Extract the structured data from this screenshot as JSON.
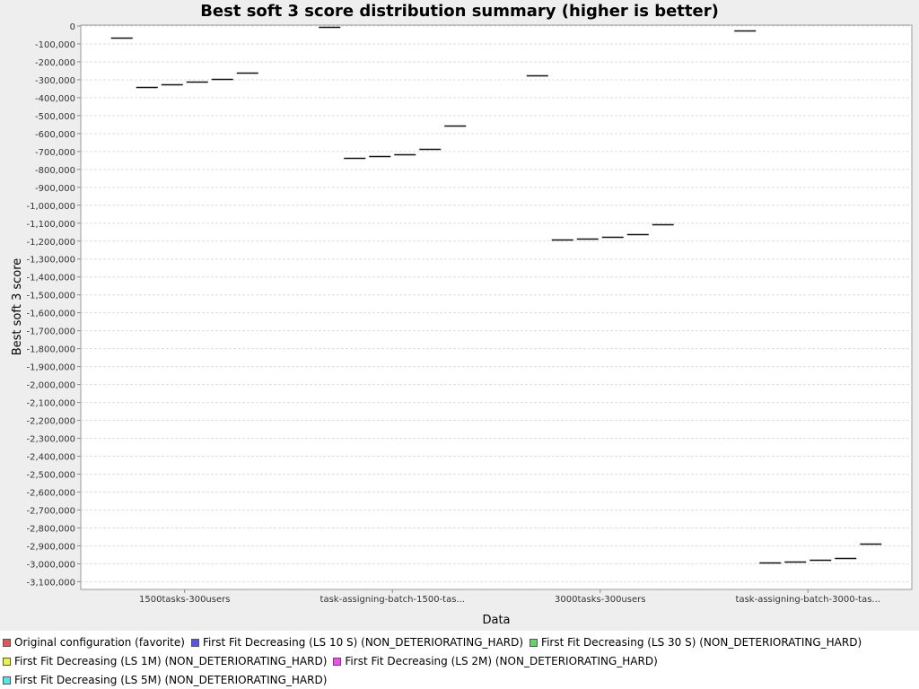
{
  "chart_data": {
    "type": "boxplot",
    "title": "Best soft 3 score distribution summary (higher is better)",
    "xlabel": "Data",
    "ylabel": "Best soft 3 score",
    "ylim": [
      -3150000,
      0
    ],
    "yticks": [
      {
        "v": 0,
        "label": "0"
      },
      {
        "v": -100000,
        "label": "-100,000"
      },
      {
        "v": -200000,
        "label": "-200,000"
      },
      {
        "v": -300000,
        "label": "-300,000"
      },
      {
        "v": -400000,
        "label": "-400,000"
      },
      {
        "v": -500000,
        "label": "-500,000"
      },
      {
        "v": -600000,
        "label": "-600,000"
      },
      {
        "v": -700000,
        "label": "-700,000"
      },
      {
        "v": -800000,
        "label": "-800,000"
      },
      {
        "v": -900000,
        "label": "-900,000"
      },
      {
        "v": -1000000,
        "label": "-1,000,000"
      },
      {
        "v": -1100000,
        "label": "-1,100,000"
      },
      {
        "v": -1200000,
        "label": "-1,200,000"
      },
      {
        "v": -1300000,
        "label": "-1,300,000"
      },
      {
        "v": -1400000,
        "label": "-1,400,000"
      },
      {
        "v": -1500000,
        "label": "-1,500,000"
      },
      {
        "v": -1600000,
        "label": "-1,600,000"
      },
      {
        "v": -1700000,
        "label": "-1,700,000"
      },
      {
        "v": -1800000,
        "label": "-1,800,000"
      },
      {
        "v": -1900000,
        "label": "-1,900,000"
      },
      {
        "v": -2000000,
        "label": "-2,000,000"
      },
      {
        "v": -2100000,
        "label": "-2,100,000"
      },
      {
        "v": -2200000,
        "label": "-2,200,000"
      },
      {
        "v": -2300000,
        "label": "-2,300,000"
      },
      {
        "v": -2400000,
        "label": "-2,400,000"
      },
      {
        "v": -2500000,
        "label": "-2,500,000"
      },
      {
        "v": -2600000,
        "label": "-2,600,000"
      },
      {
        "v": -2700000,
        "label": "-2,700,000"
      },
      {
        "v": -2800000,
        "label": "-2,800,000"
      },
      {
        "v": -2900000,
        "label": "-2,900,000"
      },
      {
        "v": -3000000,
        "label": "-3,000,000"
      },
      {
        "v": -3100000,
        "label": "-3,100,000"
      }
    ],
    "categories": [
      "1500tasks-300users",
      "task-assigning-batch-1500-tas...",
      "3000tasks-300users",
      "task-assigning-batch-3000-tas..."
    ],
    "series": [
      {
        "name": "Original configuration (favorite)",
        "color": "#e05555",
        "values": [
          -65000,
          -5000,
          -275000,
          -25000
        ]
      },
      {
        "name": "First Fit Decreasing (LS 10 S) (NON_DETERIORATING_HARD)",
        "color": "#5555e6",
        "values": [
          -338000,
          -738000,
          -1190000,
          -2993000
        ]
      },
      {
        "name": "First Fit Decreasing (LS 30 S) (NON_DETERIORATING_HARD)",
        "color": "#55dd55",
        "values": [
          -327000,
          -728000,
          -1185000,
          -2987000
        ]
      },
      {
        "name": "First Fit Decreasing (LS 1M) (NON_DETERIORATING_HARD)",
        "color": "#eeee55",
        "values": [
          -308000,
          -717000,
          -1178000,
          -2980000
        ]
      },
      {
        "name": "First Fit Decreasing (LS 2M) (NON_DETERIORATING_HARD)",
        "color": "#e655e6",
        "values": [
          -297000,
          -686000,
          -1162000,
          -2968000
        ]
      },
      {
        "name": "First Fit Decreasing (LS 5M) (NON_DETERIORATING_HARD)",
        "color": "#55e6e6",
        "values": [
          -258000,
          -556000,
          -1108000,
          -2890000
        ]
      }
    ],
    "grid": true,
    "legend": "bottom"
  }
}
